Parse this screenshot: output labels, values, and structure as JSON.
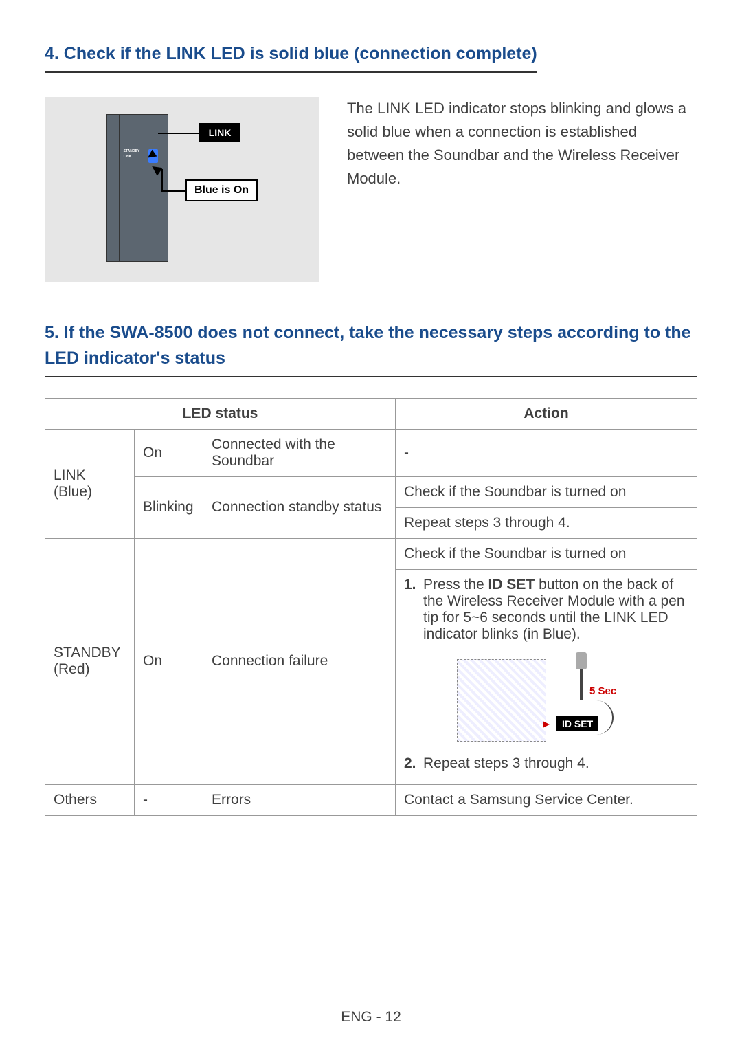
{
  "section4": {
    "heading": "4. Check if the LINK LED is solid blue (connection complete)",
    "callout_link": "LINK",
    "callout_box": "Blue is On",
    "dev_standby": "STANDBY",
    "dev_link": "LINK",
    "paragraph": "The LINK LED indicator stops blinking and glows a solid blue when a connection is established between the Soundbar and the Wireless Receiver Module."
  },
  "section5": {
    "heading": "5. If the SWA-8500 does not connect, take the necessary steps according to the LED indicator's status",
    "table": {
      "header_led": "LED status",
      "header_action": "Action",
      "rows": {
        "link_label": "LINK (Blue)",
        "link_on_state": "On",
        "link_on_desc": "Connected with the Soundbar",
        "link_on_action": "-",
        "link_blink_state": "Blinking",
        "link_blink_desc": "Connection standby status",
        "link_blink_action1": "Check if the Soundbar is turned on",
        "link_blink_action2": "Repeat steps 3 through 4.",
        "standby_label": "STANDBY (Red)",
        "standby_state": "On",
        "standby_desc": "Connection failure",
        "standby_action1": "Check if the Soundbar is turned on",
        "standby_step1_num": "1.",
        "standby_step1_pre": "Press the ",
        "standby_step1_bold": "ID SET",
        "standby_step1_post": " button on the back of the Wireless Receiver Module with a pen tip for 5~6 seconds until the LINK LED indicator blinks (in Blue).",
        "standby_step2_num": "2.",
        "standby_step2_text": "Repeat steps 3 through 4.",
        "diagram_5sec": "5 Sec",
        "diagram_idset": "ID SET",
        "others_label": "Others",
        "others_state": "-",
        "others_desc": "Errors",
        "others_action": "Contact a Samsung Service Center."
      }
    }
  },
  "page_number": "ENG - 12"
}
